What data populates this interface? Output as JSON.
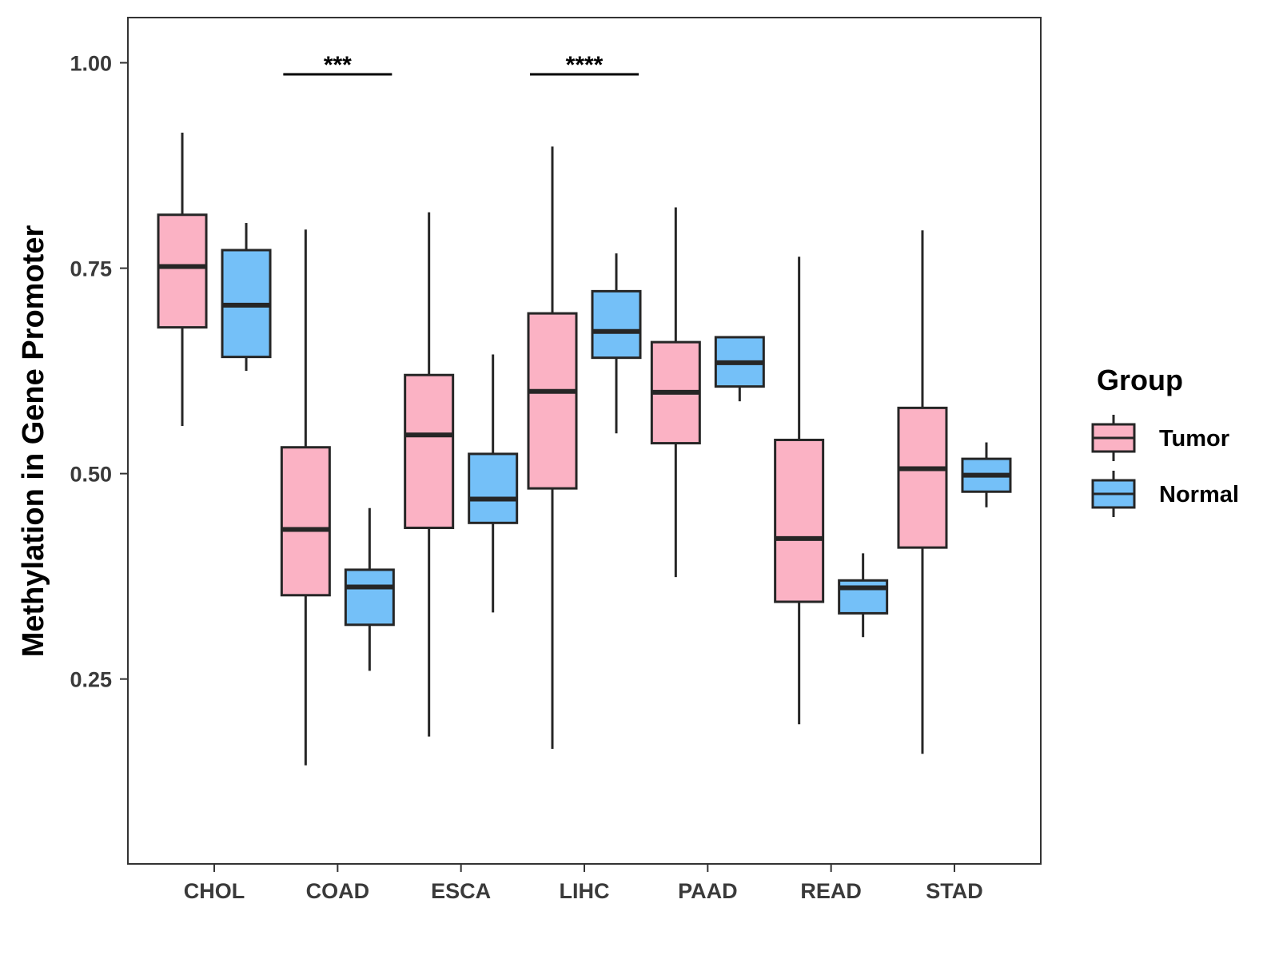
{
  "chart_data": {
    "type": "boxplot",
    "title": "",
    "xlabel": "",
    "ylabel": "Methylation in Gene Promoter",
    "ylim": [
      0.025,
      1.055
    ],
    "yticks": [
      0.25,
      0.5,
      0.75,
      1.0
    ],
    "ytick_labels": [
      "0.25",
      "0.50",
      "0.75",
      "1.00"
    ],
    "categories": [
      "CHOL",
      "COAD",
      "ESCA",
      "LIHC",
      "PAAD",
      "READ",
      "STAD"
    ],
    "legend": {
      "title": "Group",
      "position": "right",
      "entries": [
        {
          "name": "Tumor",
          "color": "#FBB2C4"
        },
        {
          "name": "Normal",
          "color": "#74C0F8"
        }
      ]
    },
    "series": [
      {
        "name": "Tumor",
        "color": "#FBB2C4",
        "boxes": [
          {
            "min": 0.558,
            "q1": 0.678,
            "median": 0.752,
            "q3": 0.815,
            "max": 0.915
          },
          {
            "min": 0.145,
            "q1": 0.352,
            "median": 0.432,
            "q3": 0.532,
            "max": 0.797
          },
          {
            "min": 0.18,
            "q1": 0.434,
            "median": 0.547,
            "q3": 0.62,
            "max": 0.818
          },
          {
            "min": 0.165,
            "q1": 0.482,
            "median": 0.6,
            "q3": 0.695,
            "max": 0.898
          },
          {
            "min": 0.374,
            "q1": 0.537,
            "median": 0.599,
            "q3": 0.66,
            "max": 0.824
          },
          {
            "min": 0.195,
            "q1": 0.344,
            "median": 0.421,
            "q3": 0.541,
            "max": 0.764
          },
          {
            "min": 0.159,
            "q1": 0.41,
            "median": 0.506,
            "q3": 0.58,
            "max": 0.796
          }
        ]
      },
      {
        "name": "Normal",
        "color": "#74C0F8",
        "boxes": [
          {
            "min": 0.625,
            "q1": 0.642,
            "median": 0.705,
            "q3": 0.772,
            "max": 0.805
          },
          {
            "min": 0.26,
            "q1": 0.316,
            "median": 0.362,
            "q3": 0.383,
            "max": 0.458
          },
          {
            "min": 0.331,
            "q1": 0.44,
            "median": 0.469,
            "q3": 0.524,
            "max": 0.645
          },
          {
            "min": 0.549,
            "q1": 0.641,
            "median": 0.673,
            "q3": 0.722,
            "max": 0.768
          },
          {
            "min": 0.588,
            "q1": 0.606,
            "median": 0.635,
            "q3": 0.666,
            "max": 0.666
          },
          {
            "min": 0.301,
            "q1": 0.33,
            "median": 0.361,
            "q3": 0.37,
            "max": 0.403
          },
          {
            "min": 0.459,
            "q1": 0.478,
            "median": 0.498,
            "q3": 0.518,
            "max": 0.538
          }
        ]
      }
    ],
    "annotations": [
      {
        "category": "COAD",
        "label": "***"
      },
      {
        "category": "LIHC",
        "label": "****"
      }
    ]
  }
}
